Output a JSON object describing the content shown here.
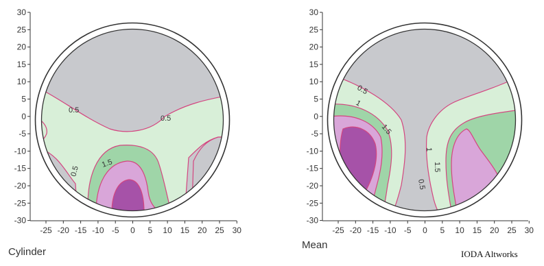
{
  "colors": {
    "gray": "#c8c9cd",
    "lightgreen": "#d8efd8",
    "green": "#9fd5a8",
    "lilac": "#d9a6d9",
    "purple": "#a652a8",
    "contour": "#d4457f",
    "rim": "#ffffff",
    "outline": "#333333"
  },
  "axes": {
    "y_ticks": [
      "30",
      "25",
      "20",
      "15",
      "10",
      "5",
      "0",
      "-5",
      "-10",
      "-15",
      "-20",
      "-25",
      "-30"
    ],
    "x_ticks": [
      "-25",
      "-20",
      "-15",
      "-10",
      "-5",
      "0",
      "5",
      "10",
      "15",
      "20",
      "25",
      "30"
    ]
  },
  "maps": [
    {
      "id": "cylinder",
      "caption": "Cylinder",
      "contour_labels": [
        "0.5",
        "0.5",
        "0.5",
        "1.5"
      ]
    },
    {
      "id": "mean",
      "caption": "Mean",
      "contour_labels": [
        "0.5",
        "1",
        "1.5",
        "1",
        "1.5",
        "0.5"
      ]
    }
  ],
  "credit": "IODA Altworks"
}
